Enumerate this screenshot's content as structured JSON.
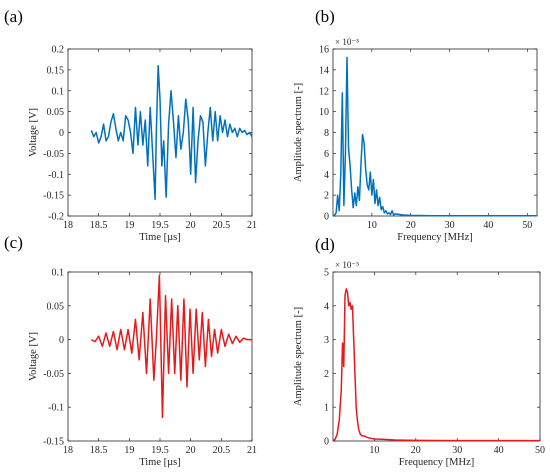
{
  "chart_data": [
    {
      "id": "a",
      "panel_label": "(a)",
      "type": "line",
      "xlabel": "Time [µs]",
      "ylabel": "Voltage [V]",
      "xlim": [
        18,
        21
      ],
      "ylim": [
        -0.2,
        0.2
      ],
      "xticks": [
        18,
        18.5,
        19,
        19.5,
        20,
        20.5,
        21
      ],
      "xtick_labels": [
        "18",
        "18.5",
        "19",
        "19.5",
        "20",
        "20.5",
        "21"
      ],
      "yticks": [
        -0.2,
        -0.15,
        -0.1,
        -0.05,
        0,
        0.05,
        0.1,
        0.15,
        0.2
      ],
      "ytick_labels": [
        "-0.2",
        "-0.15",
        "-0.1",
        "-0.05",
        "0",
        "0.05",
        "0.1",
        "0.15",
        "0.2"
      ],
      "exponent": "",
      "color": "#0072BD",
      "series": [
        {
          "x": [
            18.38,
            18.42,
            18.46,
            18.5,
            18.54,
            18.58,
            18.62,
            18.66,
            18.7,
            18.74,
            18.78,
            18.82,
            18.86,
            18.9,
            18.94,
            18.98,
            19.02,
            19.06,
            19.1,
            19.14,
            19.18,
            19.22,
            19.26,
            19.3,
            19.34,
            19.38,
            19.42,
            19.44,
            19.47,
            19.5,
            19.53,
            19.56,
            19.6,
            19.64,
            19.68,
            19.72,
            19.76,
            19.8,
            19.84,
            19.88,
            19.92,
            19.96,
            20.0,
            20.04,
            20.08,
            20.12,
            20.16,
            20.2,
            20.24,
            20.28,
            20.32,
            20.36,
            20.4,
            20.44,
            20.48,
            20.52,
            20.56,
            20.6,
            20.64,
            20.68,
            20.72,
            20.76,
            20.8,
            20.84,
            20.88,
            20.92,
            20.96,
            21.0
          ],
          "y": [
            0.005,
            -0.01,
            0.0,
            -0.025,
            -0.01,
            0.02,
            -0.02,
            -0.01,
            0.025,
            0.045,
            0.01,
            -0.02,
            0.0,
            -0.02,
            0.04,
            0.03,
            0.0,
            -0.05,
            0.06,
            -0.03,
            0.05,
            -0.03,
            0.03,
            -0.08,
            0.06,
            -0.05,
            -0.16,
            0.0,
            0.16,
            0.08,
            -0.08,
            -0.02,
            -0.155,
            0.02,
            0.1,
            0.025,
            -0.06,
            0.04,
            -0.04,
            0.0,
            0.08,
            0.03,
            -0.1,
            0.06,
            -0.12,
            -0.02,
            0.04,
            0.025,
            -0.08,
            0.0,
            0.06,
            -0.02,
            0.05,
            -0.02,
            0.04,
            0.0,
            0.03,
            -0.01,
            0.02,
            0.0,
            0.01,
            -0.01,
            0.01,
            0.0,
            0.005,
            -0.005,
            0.0,
            -0.01
          ]
        }
      ]
    },
    {
      "id": "b",
      "panel_label": "(b)",
      "type": "line",
      "xlabel": "Frequency [MHz]",
      "ylabel": "Amplitude spectrum [-]",
      "xlim": [
        0,
        52.5
      ],
      "ylim": [
        0,
        16
      ],
      "xticks": [
        10,
        20,
        30,
        40,
        50
      ],
      "xtick_labels": [
        "10",
        "20",
        "30",
        "40",
        "50"
      ],
      "yticks": [
        0,
        2,
        4,
        6,
        8,
        10,
        12,
        14,
        16
      ],
      "ytick_labels": [
        "0",
        "2",
        "4",
        "6",
        "8",
        "10",
        "12",
        "14",
        "16"
      ],
      "exponent": "× 10⁻³",
      "color": "#0072BD",
      "series": [
        {
          "x": [
            0,
            0.4,
            0.8,
            1.2,
            1.6,
            2.0,
            2.4,
            2.8,
            3.2,
            3.6,
            4.0,
            4.4,
            4.8,
            5.2,
            5.6,
            6.0,
            6.4,
            6.8,
            7.2,
            7.6,
            8.0,
            8.4,
            8.8,
            9.2,
            9.6,
            10.0,
            10.4,
            10.8,
            11.2,
            11.6,
            12.0,
            12.4,
            12.8,
            13.2,
            13.6,
            14.0,
            14.4,
            14.8,
            15.2,
            15.6,
            16.0,
            17.0,
            18.0,
            19.0,
            20.0,
            22.0,
            25.0,
            30.0,
            35.0,
            40.0,
            45.0,
            50.0,
            52.5
          ],
          "y": [
            0.0,
            0.1,
            0.3,
            2.0,
            0.5,
            4.0,
            11.8,
            1.0,
            6.0,
            15.2,
            6.5,
            4.8,
            2.5,
            0.8,
            2.2,
            1.0,
            2.8,
            1.5,
            5.0,
            7.8,
            7.0,
            4.5,
            3.0,
            2.5,
            4.2,
            2.0,
            3.5,
            1.2,
            2.5,
            1.0,
            1.8,
            0.6,
            0.9,
            0.3,
            0.5,
            0.2,
            0.3,
            0.15,
            0.5,
            0.1,
            0.2,
            0.15,
            0.1,
            0.08,
            0.05,
            0.05,
            0.03,
            0.02,
            0.02,
            0.02,
            0.02,
            0.02,
            0.02
          ]
        }
      ]
    },
    {
      "id": "c",
      "panel_label": "(c)",
      "type": "line",
      "xlabel": "Time [µs]",
      "ylabel": "Voltage [V]",
      "xlim": [
        18,
        21
      ],
      "ylim": [
        -0.15,
        0.1
      ],
      "xticks": [
        18,
        18.5,
        19,
        19.5,
        20,
        20.5,
        21
      ],
      "xtick_labels": [
        "18",
        "18.5",
        "19",
        "19.5",
        "20",
        "20.5",
        "21"
      ],
      "yticks": [
        -0.15,
        -0.1,
        -0.05,
        0,
        0.05,
        0.1
      ],
      "ytick_labels": [
        "-0.15",
        "-0.1",
        "-0.05",
        "0",
        "0.05",
        "0.1"
      ],
      "exponent": "",
      "color": "#E8191A",
      "series": [
        {
          "x": [
            18.38,
            18.44,
            18.5,
            18.56,
            18.62,
            18.68,
            18.74,
            18.8,
            18.86,
            18.92,
            18.98,
            19.04,
            19.1,
            19.16,
            19.22,
            19.28,
            19.34,
            19.4,
            19.44,
            19.49,
            19.54,
            19.59,
            19.64,
            19.69,
            19.74,
            19.79,
            19.84,
            19.89,
            19.94,
            19.99,
            20.04,
            20.09,
            20.14,
            20.19,
            20.24,
            20.29,
            20.34,
            20.39,
            20.44,
            20.5,
            20.56,
            20.62,
            20.68,
            20.74,
            20.8,
            20.86,
            20.92,
            21.0
          ],
          "y": [
            0.0,
            -0.003,
            0.005,
            -0.01,
            0.01,
            -0.01,
            0.012,
            -0.015,
            0.015,
            -0.015,
            0.015,
            -0.02,
            0.03,
            -0.03,
            0.04,
            -0.05,
            0.06,
            -0.06,
            0.0,
            0.095,
            -0.115,
            0.065,
            -0.05,
            0.06,
            -0.05,
            0.05,
            -0.06,
            0.06,
            -0.07,
            0.045,
            -0.05,
            0.045,
            -0.03,
            0.04,
            -0.04,
            0.03,
            -0.025,
            0.015,
            -0.02,
            0.015,
            -0.01,
            0.008,
            -0.006,
            0.005,
            -0.004,
            0.002,
            0.0,
            0.0
          ]
        }
      ]
    },
    {
      "id": "d",
      "panel_label": "(d)",
      "type": "line",
      "xlabel": "Frequency [MHz]",
      "ylabel": "Amplitude spectrum [-]",
      "xlim": [
        0,
        50
      ],
      "ylim": [
        0,
        5
      ],
      "xticks": [
        10,
        20,
        30,
        40,
        50
      ],
      "xtick_labels": [
        "10",
        "20",
        "30",
        "40",
        "50"
      ],
      "yticks": [
        0,
        1,
        2,
        3,
        4,
        5
      ],
      "ytick_labels": [
        "0",
        "1",
        "2",
        "3",
        "4",
        "5"
      ],
      "exponent": "× 10⁻³",
      "color": "#E8191A",
      "series": [
        {
          "x": [
            0,
            0.5,
            1.0,
            1.5,
            2.0,
            2.3,
            2.6,
            2.9,
            3.2,
            3.5,
            3.8,
            4.1,
            4.4,
            4.7,
            5.0,
            5.3,
            5.6,
            5.9,
            6.2,
            6.6,
            7.0,
            7.5,
            8.0,
            9.0,
            10.0,
            12.0,
            15.0,
            20.0,
            30.0,
            40.0,
            50.0
          ],
          "y": [
            0.0,
            0.05,
            0.2,
            0.6,
            1.5,
            2.9,
            2.2,
            4.3,
            4.5,
            4.4,
            4.0,
            4.1,
            3.9,
            4.0,
            3.0,
            2.0,
            1.0,
            0.6,
            0.35,
            0.2,
            0.15,
            0.15,
            0.12,
            0.08,
            0.06,
            0.05,
            0.03,
            0.02,
            0.01,
            0.01,
            0.01
          ]
        }
      ]
    }
  ]
}
